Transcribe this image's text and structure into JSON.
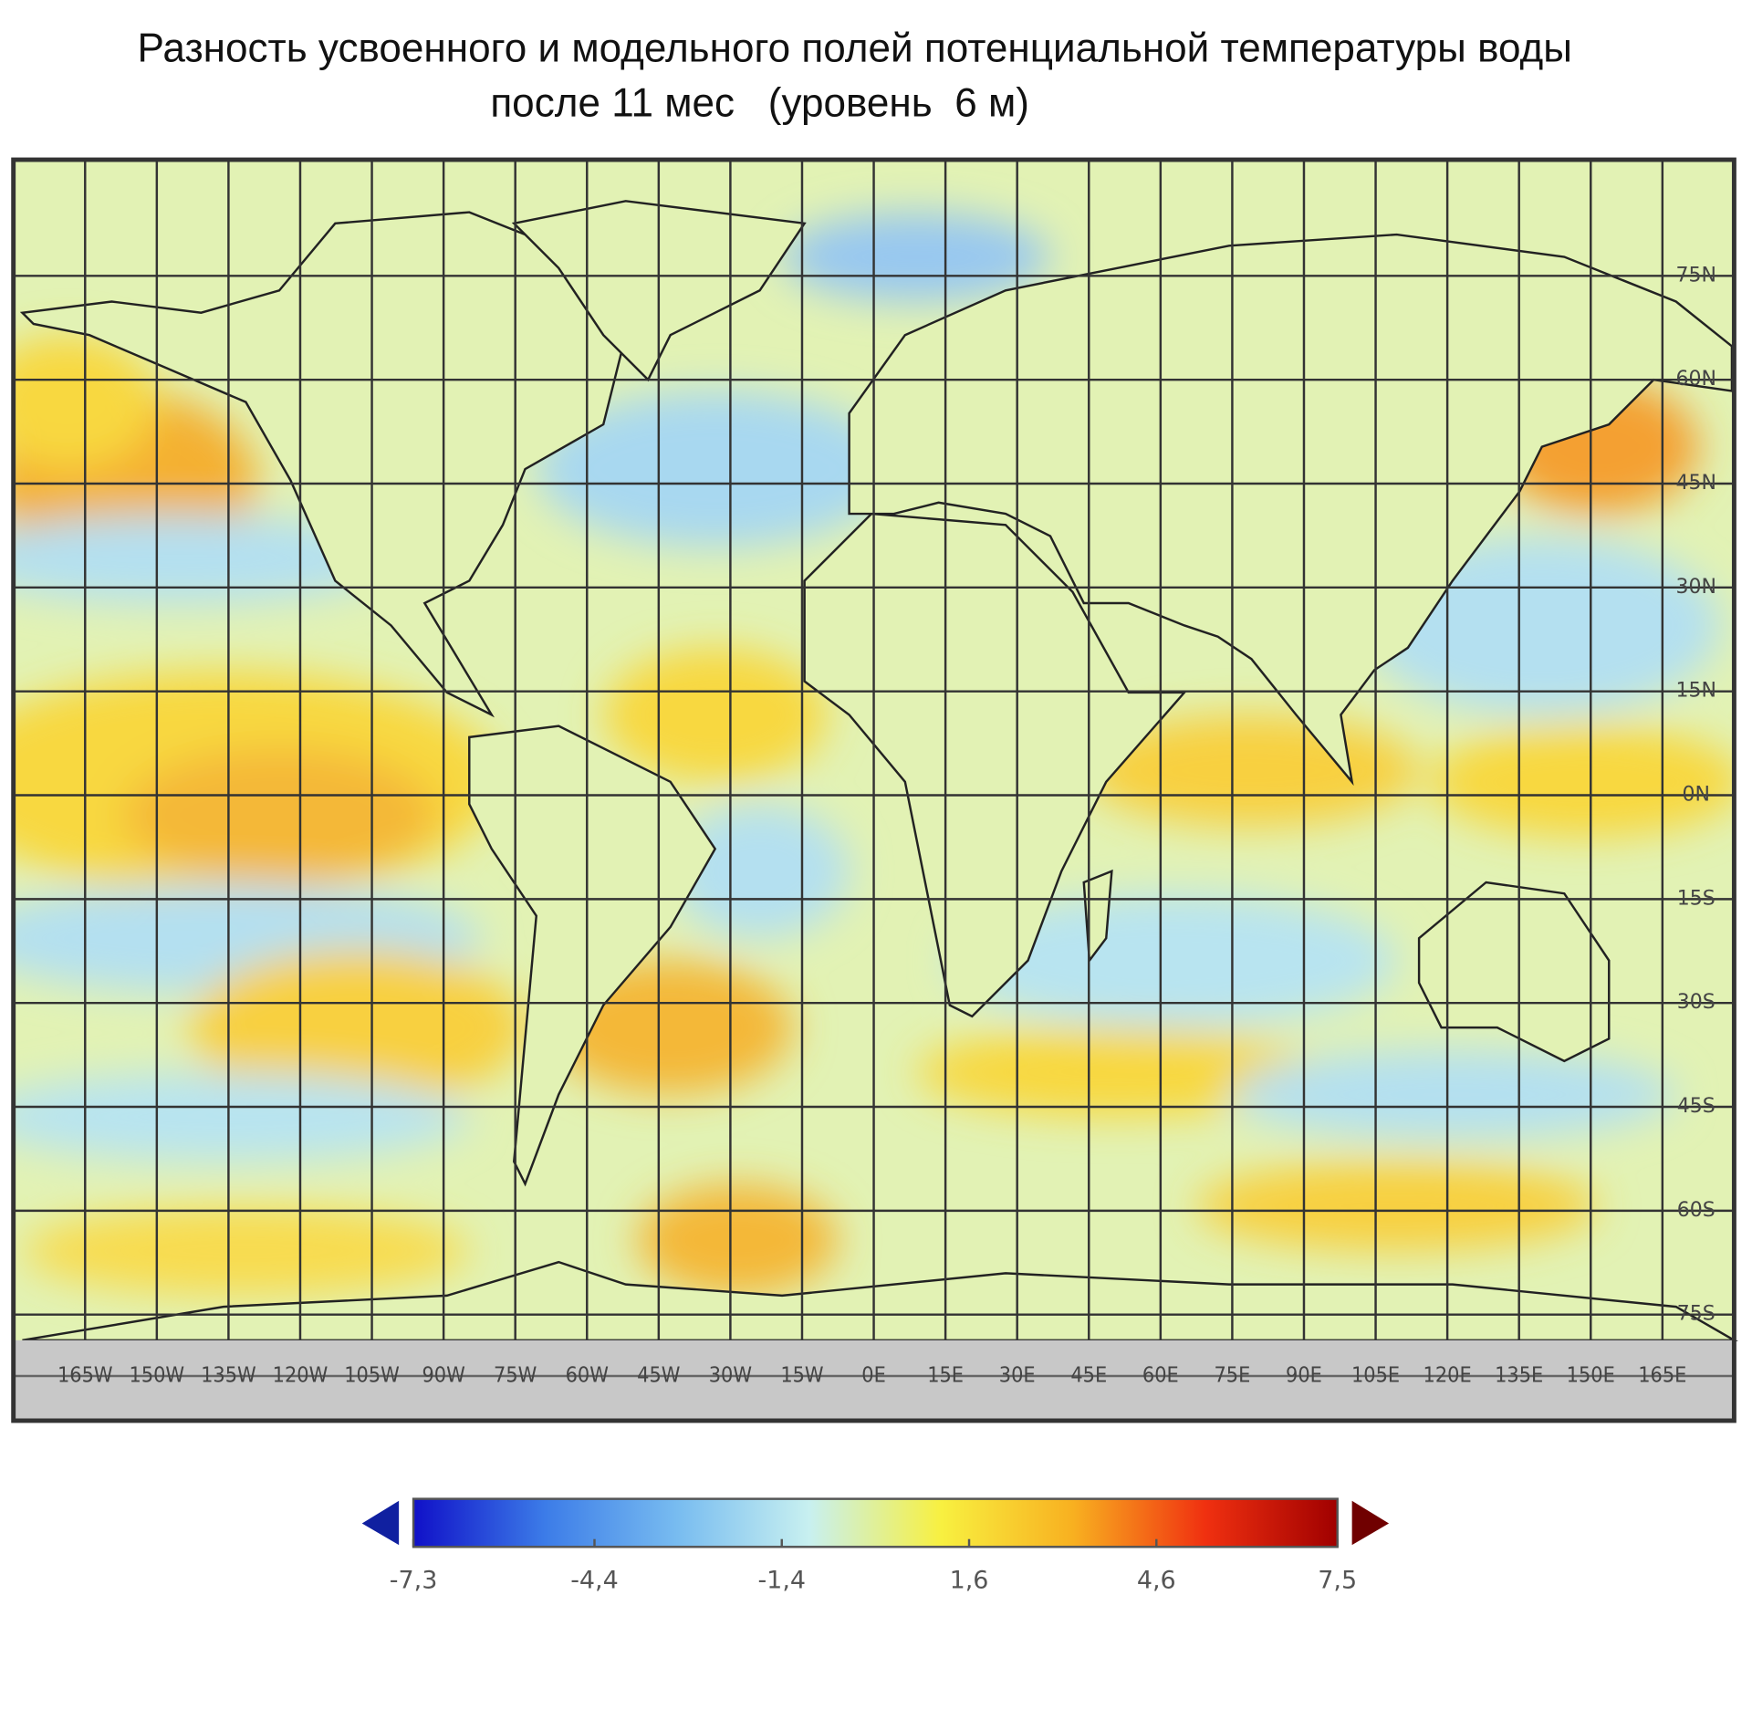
{
  "title": "Разность усвоенного и модельного полей потенциальной температуры воды",
  "subtitle": "после 11 мес   (уровень  6 м)",
  "map": {
    "lon_ticks": [
      {
        "value": -165,
        "label": "165W"
      },
      {
        "value": -150,
        "label": "150W"
      },
      {
        "value": -135,
        "label": "135W"
      },
      {
        "value": -120,
        "label": "120W"
      },
      {
        "value": -105,
        "label": "105W"
      },
      {
        "value": -90,
        "label": "90W"
      },
      {
        "value": -75,
        "label": "75W"
      },
      {
        "value": -60,
        "label": "60W"
      },
      {
        "value": -45,
        "label": "45W"
      },
      {
        "value": -30,
        "label": "30W"
      },
      {
        "value": -15,
        "label": "15W"
      },
      {
        "value": 0,
        "label": "0E"
      },
      {
        "value": 15,
        "label": "15E"
      },
      {
        "value": 30,
        "label": "30E"
      },
      {
        "value": 45,
        "label": "45E"
      },
      {
        "value": 60,
        "label": "60E"
      },
      {
        "value": 75,
        "label": "75E"
      },
      {
        "value": 90,
        "label": "90E"
      },
      {
        "value": 105,
        "label": "105E"
      },
      {
        "value": 120,
        "label": "120E"
      },
      {
        "value": 135,
        "label": "135E"
      },
      {
        "value": 150,
        "label": "150E"
      },
      {
        "value": 165,
        "label": "165E"
      }
    ],
    "lat_ticks": [
      {
        "value": 75,
        "label": "75N"
      },
      {
        "value": 60,
        "label": "60N"
      },
      {
        "value": 45,
        "label": "45N"
      },
      {
        "value": 30,
        "label": "30N"
      },
      {
        "value": 15,
        "label": "15N"
      },
      {
        "value": 0,
        "label": "0N"
      },
      {
        "value": -15,
        "label": "15S"
      },
      {
        "value": -30,
        "label": "30S"
      },
      {
        "value": -45,
        "label": "45S"
      },
      {
        "value": -60,
        "label": "60S"
      },
      {
        "value": -75,
        "label": "75S"
      }
    ]
  },
  "colorbar": {
    "ticks": [
      {
        "value": -7.3,
        "label": "-7,3"
      },
      {
        "value": -4.4,
        "label": "-4,4"
      },
      {
        "value": -1.4,
        "label": "-1,4"
      },
      {
        "value": 1.6,
        "label": "1,6"
      },
      {
        "value": 4.6,
        "label": "4,6"
      },
      {
        "value": 7.5,
        "label": "7,5"
      }
    ],
    "colors": [
      "#1010c8",
      "#3c7ce8",
      "#78bcf0",
      "#c8f0f0",
      "#f8f040",
      "#f8b020",
      "#f03010",
      "#a00000"
    ],
    "under_color": "#1020a0",
    "over_color": "#700000"
  }
}
